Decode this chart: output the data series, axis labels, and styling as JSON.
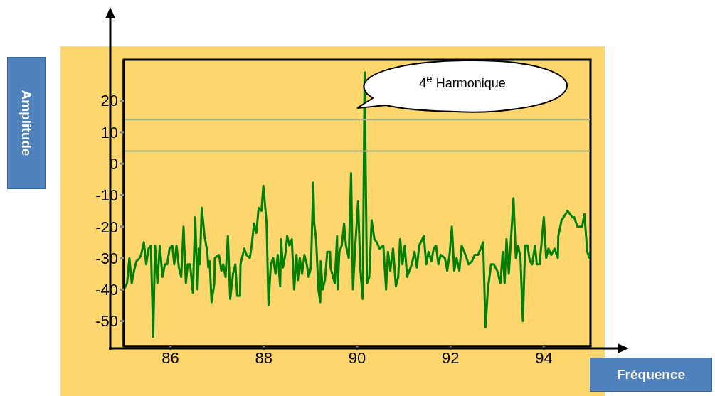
{
  "chart_data": {
    "type": "line",
    "xlabel": "Fréquence",
    "ylabel": "Amplitude",
    "annotations": [
      "4$^{e}$ Harmonique"
    ],
    "xlim": [
      85,
      95
    ],
    "ylim": [
      -58,
      33
    ],
    "xticks": [
      86,
      88,
      90,
      92,
      94
    ],
    "yticks": [
      -50,
      -40,
      -30,
      -20,
      -10,
      0,
      10,
      20
    ],
    "marker": "none",
    "line_style": "solid",
    "ref_lines": [
      {
        "axis": "y",
        "value": 14,
        "color": "#aab07c"
      },
      {
        "axis": "y",
        "value": 4,
        "color": "#aab07c"
      }
    ],
    "series": [
      {
        "color": "#008000",
        "x": [
          85.0,
          85.07,
          85.12,
          85.17,
          85.22,
          85.27,
          85.34,
          85.37,
          85.43,
          85.48,
          85.53,
          85.58,
          85.63,
          85.67,
          85.72,
          85.77,
          85.83,
          85.88,
          85.93,
          85.98,
          86.04,
          86.08,
          86.13,
          86.18,
          86.23,
          86.28,
          86.33,
          86.37,
          86.42,
          86.48,
          86.53,
          86.58,
          86.61,
          86.63,
          86.67,
          86.73,
          86.79,
          86.81,
          86.84,
          86.88,
          86.94,
          86.95,
          87.04,
          87.09,
          87.13,
          87.18,
          87.23,
          87.28,
          87.34,
          87.39,
          87.43,
          87.49,
          87.5,
          87.58,
          87.63,
          87.7,
          87.74,
          87.79,
          87.84,
          87.89,
          87.95,
          87.99,
          88.06,
          88.1,
          88.15,
          88.2,
          88.25,
          88.3,
          88.35,
          88.37,
          88.41,
          88.46,
          88.5,
          88.55,
          88.6,
          88.65,
          88.7,
          88.73,
          88.77,
          88.82,
          88.87,
          88.92,
          88.96,
          89.01,
          89.06,
          89.08,
          89.12,
          89.17,
          89.21,
          89.22,
          89.26,
          89.31,
          89.36,
          89.42,
          89.43,
          89.52,
          89.57,
          89.58,
          89.62,
          89.67,
          89.72,
          89.76,
          89.82,
          89.87,
          89.91,
          89.96,
          90.02,
          90.07,
          90.12,
          90.16,
          90.21,
          90.26,
          90.31,
          90.37,
          90.42,
          90.48,
          90.56,
          90.62,
          90.66,
          90.71,
          90.77,
          90.83,
          90.88,
          90.92,
          90.97,
          91.02,
          91.07,
          91.17,
          91.23,
          91.28,
          91.33,
          91.43,
          91.48,
          91.53,
          91.59,
          91.64,
          91.69,
          91.74,
          91.79,
          91.88,
          91.93,
          91.98,
          92.03,
          92.08,
          92.13,
          92.19,
          92.24,
          92.32,
          92.39,
          92.46,
          92.52,
          92.59,
          92.7,
          92.75,
          92.8,
          92.87,
          92.93,
          93.0,
          93.07,
          93.12,
          93.16,
          93.2,
          93.25,
          93.35,
          93.4,
          93.45,
          93.5,
          93.55,
          93.6,
          93.65,
          93.7,
          93.75,
          93.81,
          93.85,
          93.91,
          94.0,
          94.05,
          94.1,
          94.16,
          94.23,
          94.3,
          94.31,
          94.38,
          94.51,
          94.61,
          94.65,
          94.72,
          94.82,
          94.87,
          94.93,
          94.98,
          95.0
        ],
        "values": [
          -40,
          -38,
          -30,
          -38,
          -34,
          -31,
          -30,
          -29,
          -25,
          -32,
          -27,
          -26,
          -55,
          -26,
          -38,
          -26,
          -36,
          -32,
          -32,
          -27,
          -26,
          -32,
          -26,
          -33,
          -36,
          -20,
          -38,
          -32,
          -32,
          -41,
          -17,
          -40,
          -27,
          -32,
          -14,
          -23,
          -28,
          -33,
          -31,
          -44,
          -38,
          -30,
          -29,
          -34,
          -32,
          -36,
          -23,
          -43,
          -35,
          -32,
          -42,
          -42,
          -32,
          -27,
          -29,
          -30,
          -26,
          -19,
          -22,
          -14,
          -15,
          -7,
          -19,
          -45,
          -32,
          -30,
          -35,
          -29,
          -39,
          -24,
          -33,
          -29,
          -23,
          -26,
          -24,
          -40,
          -29,
          -37,
          -30,
          -35,
          -29,
          -32,
          -36,
          -33,
          -6,
          -19,
          -24,
          -40,
          -44,
          -31,
          -40,
          -37,
          -28,
          -28,
          -33,
          -38,
          -23,
          -40,
          -28,
          -26,
          -19,
          -26,
          -30,
          -3,
          -40,
          -26,
          -12,
          -34,
          -43,
          29,
          -38,
          -36,
          -18,
          -24,
          -25,
          -27,
          -26,
          -40,
          -28,
          -34,
          -27,
          -39,
          -36,
          -24,
          -32,
          -26,
          -36,
          -32,
          -28,
          -33,
          -26,
          -23,
          -32,
          -28,
          -31,
          -27,
          -26,
          -32,
          -29,
          -30,
          -34,
          -29,
          -20,
          -34,
          -30,
          -34,
          -26,
          -29,
          -32,
          -31,
          -29,
          -29,
          -25,
          -52,
          -40,
          -32,
          -32,
          -34,
          -38,
          -28,
          -38,
          -24,
          -35,
          -11,
          -30,
          -26,
          -30,
          -50,
          -26,
          -26,
          -31,
          -32,
          -26,
          -32,
          -32,
          -17,
          -30,
          -27,
          -29,
          -27,
          -30,
          -23,
          -18,
          -15,
          -17,
          -17,
          -20,
          -20,
          -16,
          -28,
          -30,
          -28
        ]
      }
    ]
  }
}
